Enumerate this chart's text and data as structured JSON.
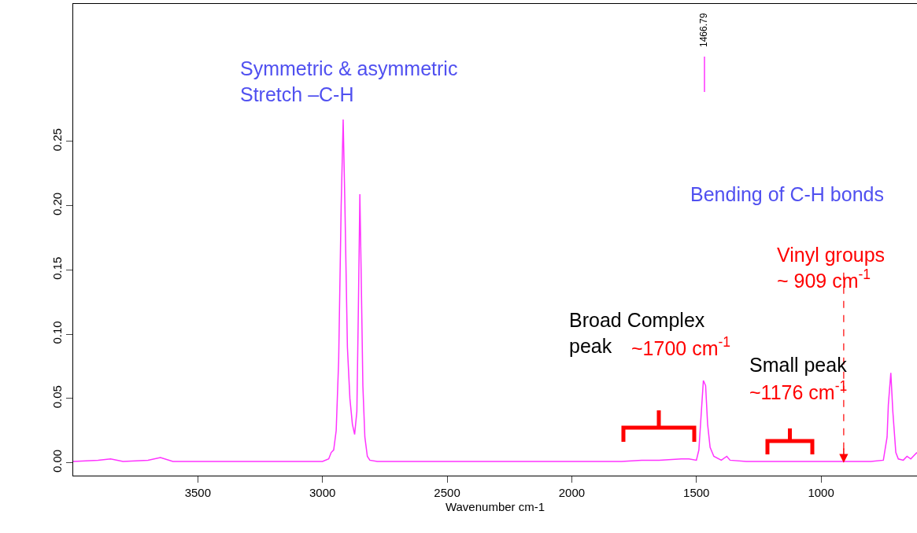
{
  "chart_data": {
    "type": "line",
    "xlabel": "Wavenumber cm-1",
    "xlim": [
      4000,
      615
    ],
    "xticks": [
      3500,
      3000,
      2500,
      2000,
      1500,
      1000
    ],
    "ylim": [
      -0.01,
      0.357
    ],
    "yticks": [
      {
        "value": 0,
        "label": "0.00"
      },
      0.05,
      {
        "value": 0.1,
        "label": "0.10"
      },
      0.15,
      {
        "value": 0.2,
        "label": "0.20"
      },
      0.25
    ],
    "marker": "none",
    "line_style": "solid",
    "series": [
      {
        "color": "#ff33ff",
        "x": [
          4000,
          3900,
          3850,
          3800,
          3700,
          3650,
          3600,
          3400,
          3200,
          3000,
          2975,
          2965,
          2955,
          2945,
          2935,
          2925,
          2917,
          2910,
          2900,
          2890,
          2880,
          2871,
          2862,
          2856,
          2850,
          2845,
          2838,
          2830,
          2820,
          2810,
          2780,
          2600,
          2400,
          2200,
          2000,
          1800,
          1720,
          1650,
          1560,
          1530,
          1500,
          1490,
          1480,
          1472,
          1463,
          1455,
          1445,
          1430,
          1400,
          1378,
          1365,
          1300,
          1100,
          950,
          800,
          750,
          735,
          730,
          720,
          712,
          700,
          690,
          670,
          655,
          640,
          625,
          615
        ],
        "values": [
          0.001,
          0.002,
          0.003,
          0.001,
          0.002,
          0.004,
          0.001,
          0.001,
          0.001,
          0.001,
          0.003,
          0.008,
          0.01,
          0.025,
          0.08,
          0.2,
          0.267,
          0.2,
          0.09,
          0.05,
          0.03,
          0.022,
          0.04,
          0.12,
          0.209,
          0.15,
          0.06,
          0.02,
          0.005,
          0.002,
          0.001,
          0.001,
          0.001,
          0.001,
          0.001,
          0.001,
          0.002,
          0.002,
          0.003,
          0.003,
          0.002,
          0.01,
          0.04,
          0.064,
          0.06,
          0.03,
          0.012,
          0.005,
          0.002,
          0.005,
          0.002,
          0.001,
          0.001,
          0.001,
          0.001,
          0.002,
          0.02,
          0.045,
          0.07,
          0.04,
          0.008,
          0.003,
          0.002,
          0.005,
          0.003,
          0.006,
          0.008
        ]
      }
    ],
    "ref_lines": [
      {
        "axis": "x",
        "value": 909,
        "color": "#ff0000",
        "line_style": "dashed"
      }
    ],
    "annotations": [
      "Symmetric & asymmetric\nStretch –C-H",
      "Bending of C-H bonds",
      "Vinyl groups\n~ 909 cm$^{-1}$",
      "Broad Complex\npeak",
      "~1700 cm$^{-1}$",
      "Small peak",
      "~1176 cm$^{-1}$",
      "1466.79"
    ]
  }
}
